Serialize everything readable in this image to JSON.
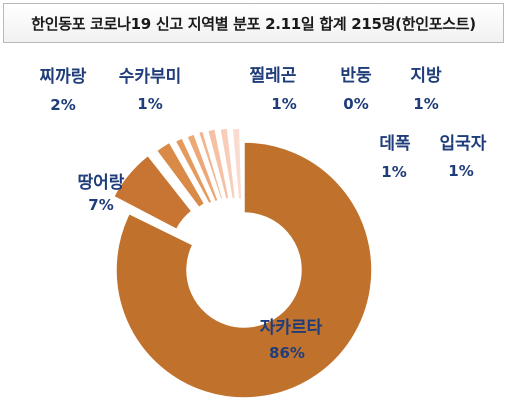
{
  "title": "한인동포 코로나19 신고 지역별 분포 2.11일 합계 215명(한인포스트)",
  "chart_data": {
    "type": "pie",
    "variant": "exploded-donut",
    "title": "한인동포 코로나19 신고 지역별 분포 2.11일 합계 215명(한인포스트)",
    "categories": [
      "자카르타",
      "땅어랑",
      "찌까랑",
      "수카부미",
      "찔레곤",
      "반둥",
      "지방",
      "데폭",
      "입국자"
    ],
    "values": [
      86,
      7,
      2,
      1,
      1,
      0,
      1,
      1,
      1
    ],
    "value_labels": [
      "86%",
      "7%",
      "2%",
      "1%",
      "1%",
      "0%",
      "1%",
      "1%",
      "1%"
    ],
    "colors": [
      "#c0712b",
      "#c87432",
      "#d98a47",
      "#e39a5c",
      "#eda877",
      "#f2b48e",
      "#f5c1a5",
      "#f8cebb",
      "#fadbd0"
    ],
    "legend": "none"
  }
}
